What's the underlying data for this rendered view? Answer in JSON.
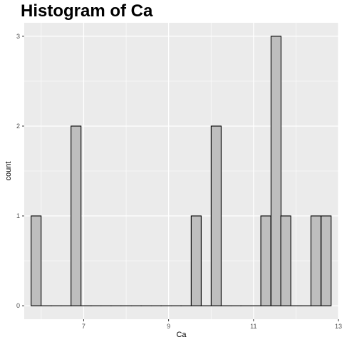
{
  "chart_data": {
    "type": "bar",
    "title": "Histogram of Ca",
    "xlabel": "Ca",
    "ylabel": "count",
    "binwidth": 0.2353,
    "bins": [
      {
        "x": 5.88,
        "count": 1
      },
      {
        "x": 6.12,
        "count": 0
      },
      {
        "x": 6.35,
        "count": 0
      },
      {
        "x": 6.59,
        "count": 0
      },
      {
        "x": 6.82,
        "count": 2
      },
      {
        "x": 7.06,
        "count": 0
      },
      {
        "x": 7.29,
        "count": 0
      },
      {
        "x": 7.53,
        "count": 0
      },
      {
        "x": 7.76,
        "count": 0
      },
      {
        "x": 8.0,
        "count": 0
      },
      {
        "x": 8.24,
        "count": 0
      },
      {
        "x": 8.47,
        "count": 0
      },
      {
        "x": 8.71,
        "count": 0
      },
      {
        "x": 8.94,
        "count": 0
      },
      {
        "x": 9.18,
        "count": 0
      },
      {
        "x": 9.41,
        "count": 0
      },
      {
        "x": 9.65,
        "count": 1
      },
      {
        "x": 9.88,
        "count": 0
      },
      {
        "x": 10.12,
        "count": 2
      },
      {
        "x": 10.35,
        "count": 0
      },
      {
        "x": 10.59,
        "count": 0
      },
      {
        "x": 10.82,
        "count": 0
      },
      {
        "x": 11.06,
        "count": 0
      },
      {
        "x": 11.29,
        "count": 1
      },
      {
        "x": 11.53,
        "count": 3
      },
      {
        "x": 11.76,
        "count": 1
      },
      {
        "x": 12.0,
        "count": 0
      },
      {
        "x": 12.24,
        "count": 0
      },
      {
        "x": 12.47,
        "count": 1
      },
      {
        "x": 12.71,
        "count": 1
      }
    ],
    "xlim": [
      5.6,
      13.0
    ],
    "ylim": [
      -0.15,
      3.15
    ],
    "xticks": [
      7,
      9,
      11,
      13
    ],
    "yticks": [
      0,
      1,
      2,
      3
    ],
    "xtick_labels": [
      "7",
      "9",
      "11",
      "13"
    ],
    "ytick_labels": [
      "0",
      "1",
      "2",
      "3"
    ],
    "grid": true,
    "colors": {
      "panel": "#ebebeb",
      "grid_major": "#ffffff",
      "bar_fill": "#bebebe",
      "bar_stroke": "#000000"
    }
  }
}
